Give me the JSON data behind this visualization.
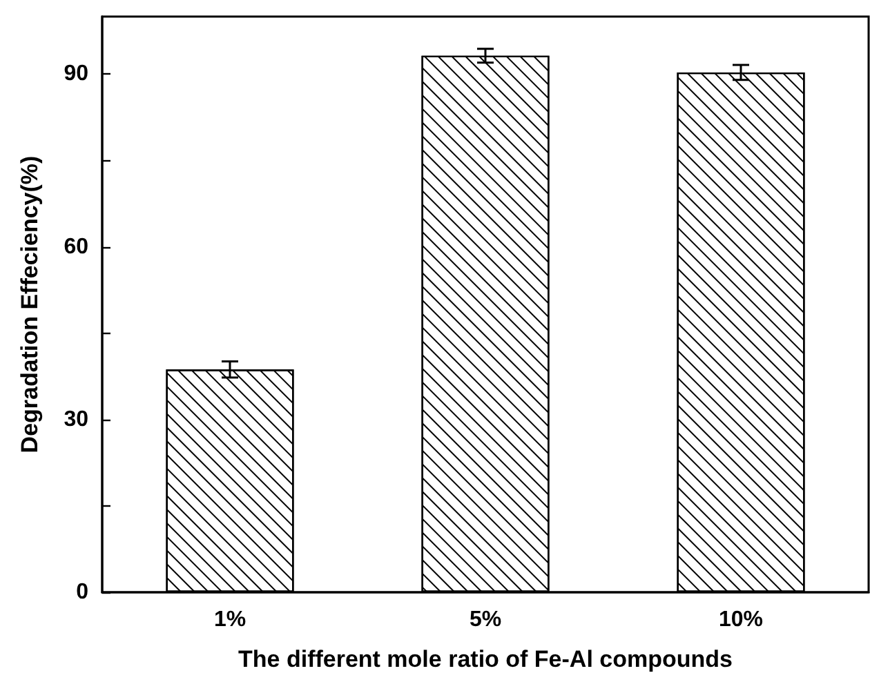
{
  "chart_data": {
    "type": "bar",
    "xlabel": "The different mole ratio of Fe-Al compounds",
    "ylabel": "Degradation Effeciency(%)",
    "categories": [
      "1%",
      "5%",
      "10%"
    ],
    "values": [
      38.7,
      93.2,
      90.3
    ],
    "errors": [
      1.4,
      1.2,
      1.3
    ],
    "color": "#ffffff",
    "ylim": [
      0,
      100
    ],
    "yticks": [
      0,
      {
        "value": 15,
        "label": null
      },
      30,
      {
        "value": 45,
        "label": null
      },
      60,
      {
        "value": 75,
        "label": null
      },
      90
    ],
    "grid": false
  }
}
